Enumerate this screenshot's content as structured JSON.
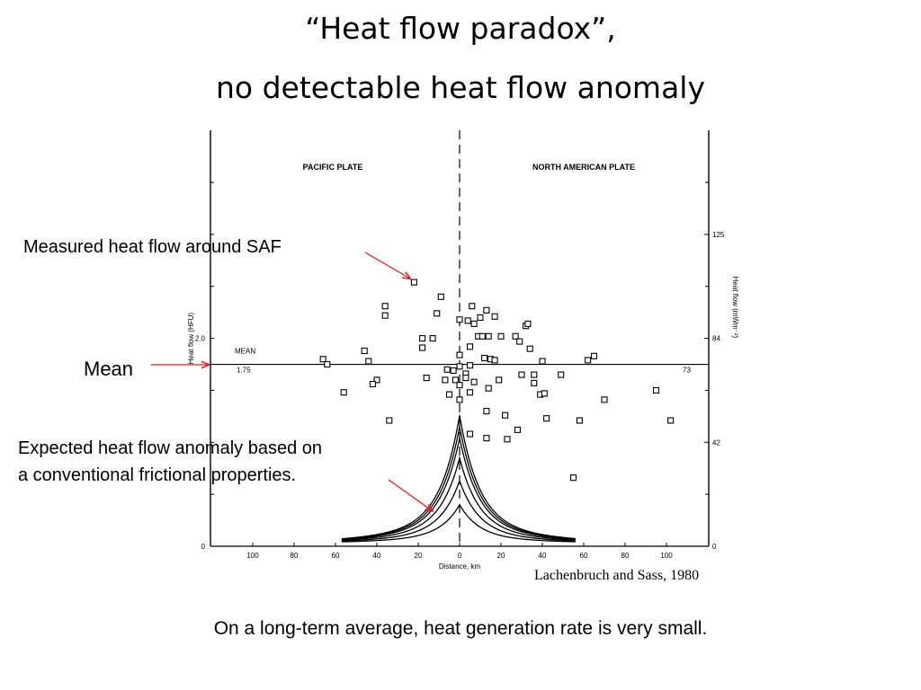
{
  "slide": {
    "title_line1": "“Heat flow paradox”,",
    "title_line2": "no detectable heat flow anomaly",
    "annotation_saf": "Measured heat flow around SAF",
    "annotation_mean": "Mean",
    "annotation_expected_line1": "Expected heat flow anomaly based on",
    "annotation_expected_line2": "a conventional frictional properties.",
    "citation": "Lachenbruch and Sass, 1980",
    "footer": "On a long-term average, heat generation rate is very small.",
    "arrow_color": "#e31b1b"
  },
  "chart_data": {
    "type": "scatter",
    "xlabel": "Distance, km",
    "ylabel_left": "Heat flow (HFU)",
    "ylabel_right": "Heat flow (mWm⁻²)",
    "xlim": [
      -120,
      120
    ],
    "ylim": [
      0,
      4.0
    ],
    "x_ticks": [
      -100,
      -80,
      -60,
      -40,
      -20,
      0,
      20,
      40,
      60,
      80,
      100
    ],
    "x_tick_labels": [
      "100",
      "80",
      "60",
      "40",
      "20",
      "0",
      "20",
      "40",
      "60",
      "80",
      "100"
    ],
    "left_ticks": [
      0,
      2.0
    ],
    "left_tick_labels": [
      "0",
      "2.0"
    ],
    "right_ticks": [
      0,
      1.0,
      2.0,
      3.0
    ],
    "right_tick_labels": [
      "0",
      "42",
      "84",
      "125"
    ],
    "regions": [
      "PACIFIC PLATE",
      "NORTH AMERICAN PLATE"
    ],
    "mean": {
      "value_hfu": 1.75,
      "value_mw": 73,
      "label": "MEAN",
      "label_hfu": "1.75",
      "label_mw": "73"
    },
    "points": [
      {
        "x": -22,
        "y": 2.54
      },
      {
        "x": -9,
        "y": 2.4
      },
      {
        "x": -36,
        "y": 2.31
      },
      {
        "x": -36,
        "y": 2.22
      },
      {
        "x": -11,
        "y": 2.24
      },
      {
        "x": 6,
        "y": 2.31
      },
      {
        "x": 13,
        "y": 2.27
      },
      {
        "x": 17,
        "y": 2.21
      },
      {
        "x": 0,
        "y": 2.18
      },
      {
        "x": 4,
        "y": 2.17
      },
      {
        "x": 7,
        "y": 2.14
      },
      {
        "x": 10,
        "y": 2.2
      },
      {
        "x": 32,
        "y": 2.12
      },
      {
        "x": 33,
        "y": 2.14
      },
      {
        "x": -18,
        "y": 2.0
      },
      {
        "x": -13,
        "y": 2.0
      },
      {
        "x": -18,
        "y": 1.91
      },
      {
        "x": 9,
        "y": 2.02
      },
      {
        "x": 11,
        "y": 2.02
      },
      {
        "x": 14,
        "y": 2.02
      },
      {
        "x": 20,
        "y": 2.02
      },
      {
        "x": 27,
        "y": 2.02
      },
      {
        "x": 29,
        "y": 1.97
      },
      {
        "x": 34,
        "y": 1.9
      },
      {
        "x": 5,
        "y": 1.92
      },
      {
        "x": -46,
        "y": 1.88
      },
      {
        "x": -44,
        "y": 1.78
      },
      {
        "x": -66,
        "y": 1.8
      },
      {
        "x": -64,
        "y": 1.75
      },
      {
        "x": 0,
        "y": 1.84
      },
      {
        "x": 12,
        "y": 1.81
      },
      {
        "x": 15,
        "y": 1.8
      },
      {
        "x": 17,
        "y": 1.79
      },
      {
        "x": 5,
        "y": 1.74
      },
      {
        "x": -6,
        "y": 1.7
      },
      {
        "x": -3,
        "y": 1.69
      },
      {
        "x": 0,
        "y": 1.73
      },
      {
        "x": 3,
        "y": 1.66
      },
      {
        "x": 40,
        "y": 1.78
      },
      {
        "x": 62,
        "y": 1.79
      },
      {
        "x": 65,
        "y": 1.83
      },
      {
        "x": -16,
        "y": 1.62
      },
      {
        "x": -7,
        "y": 1.6
      },
      {
        "x": -2,
        "y": 1.6
      },
      {
        "x": 0,
        "y": 1.55
      },
      {
        "x": 3,
        "y": 1.62
      },
      {
        "x": 7,
        "y": 1.58
      },
      {
        "x": 19,
        "y": 1.6
      },
      {
        "x": 30,
        "y": 1.65
      },
      {
        "x": 36,
        "y": 1.65
      },
      {
        "x": 49,
        "y": 1.65
      },
      {
        "x": 36,
        "y": 1.57
      },
      {
        "x": -40,
        "y": 1.6
      },
      {
        "x": -42,
        "y": 1.56
      },
      {
        "x": -56,
        "y": 1.48
      },
      {
        "x": -5,
        "y": 1.46
      },
      {
        "x": 0,
        "y": 1.41
      },
      {
        "x": 5,
        "y": 1.48
      },
      {
        "x": 14,
        "y": 1.52
      },
      {
        "x": 39,
        "y": 1.46
      },
      {
        "x": 41,
        "y": 1.47
      },
      {
        "x": 70,
        "y": 1.41
      },
      {
        "x": 95,
        "y": 1.5
      },
      {
        "x": -34,
        "y": 1.21
      },
      {
        "x": 13,
        "y": 1.3
      },
      {
        "x": 22,
        "y": 1.26
      },
      {
        "x": 42,
        "y": 1.23
      },
      {
        "x": 58,
        "y": 1.21
      },
      {
        "x": 102,
        "y": 1.21
      },
      {
        "x": 5,
        "y": 1.08
      },
      {
        "x": 13,
        "y": 1.04
      },
      {
        "x": 23,
        "y": 1.03
      },
      {
        "x": 28,
        "y": 1.12
      },
      {
        "x": 55,
        "y": 0.66
      }
    ],
    "expected_anomaly_curves": [
      {
        "name": "",
        "peak_hfu": 0.4
      },
      {
        "name": "",
        "peak_hfu": 0.63
      },
      {
        "name": "",
        "peak_hfu": 0.85
      },
      {
        "name": "",
        "peak_hfu": 1.04
      },
      {
        "name": "",
        "peak_hfu": 1.15
      },
      {
        "name": "",
        "peak_hfu": 1.26
      }
    ],
    "curve_range_km": [
      -57,
      56
    ],
    "curve_baseline_hfu": 0.03
  }
}
